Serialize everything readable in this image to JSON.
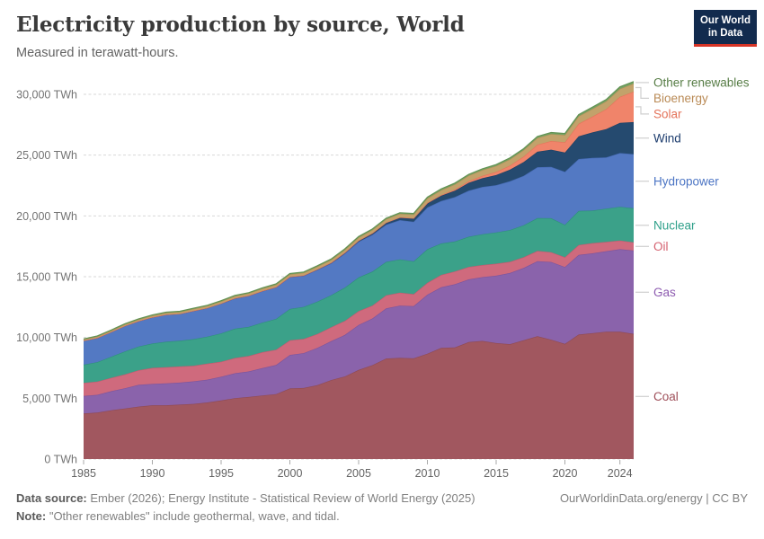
{
  "header": {
    "title": "Electricity production by source, World",
    "subtitle": "Measured in terawatt-hours.",
    "logo_line1": "Our World",
    "logo_line2": "in Data",
    "logo_bg": "#122b4e",
    "logo_accent": "#d63426"
  },
  "footer": {
    "source_label": "Data source:",
    "source_text": " Ember (2026); Energy Institute - Statistical Review of World Energy (2025)",
    "note_label": "Note:",
    "note_text": " \"Other renewables\" include geothermal, wave, and tidal.",
    "link": "OurWorldinData.org/energy | CC BY"
  },
  "chart_data": {
    "type": "area",
    "stacked": true,
    "title": "Electricity production by source, World",
    "subtitle": "Measured in terawatt-hours.",
    "unit": "TWh",
    "xlabel": "",
    "ylabel": "TWh",
    "ylim": [
      0,
      31500
    ],
    "grid": "dashed-horizontal",
    "legend_position": "right-of-plot, labels aligned to band midpoints",
    "x": [
      1985,
      1986,
      1987,
      1988,
      1989,
      1990,
      1991,
      1992,
      1993,
      1994,
      1995,
      1996,
      1997,
      1998,
      1999,
      2000,
      2001,
      2002,
      2003,
      2004,
      2005,
      2006,
      2007,
      2008,
      2009,
      2010,
      2011,
      2012,
      2013,
      2014,
      2015,
      2016,
      2017,
      2018,
      2019,
      2020,
      2021,
      2022,
      2023,
      2024,
      2025
    ],
    "xticks": [
      1985,
      1990,
      1995,
      2000,
      2005,
      2010,
      2015,
      2020,
      2024
    ],
    "yticks": [
      0,
      5000,
      10000,
      15000,
      20000,
      25000,
      30000
    ],
    "ytick_suffix": " TWh",
    "series": [
      {
        "name": "Coal",
        "color": "#a1575f",
        "stroke": "#8f4a52",
        "label_color": "#9e4e58",
        "values": [
          3748,
          3822,
          4014,
          4158,
          4312,
          4426,
          4425,
          4475,
          4539,
          4656,
          4821,
          5012,
          5105,
          5232,
          5342,
          5809,
          5845,
          6075,
          6495,
          6790,
          7333,
          7720,
          8268,
          8318,
          8280,
          8666,
          9143,
          9180,
          9622,
          9720,
          9538,
          9450,
          9770,
          10100,
          9820,
          9470,
          10240,
          10350,
          10480,
          10470,
          10300
        ]
      },
      {
        "name": "Gas",
        "color": "#8a63ab",
        "stroke": "#7b549d",
        "label_color": "#8d5bb0",
        "values": [
          1440,
          1463,
          1568,
          1661,
          1794,
          1752,
          1798,
          1810,
          1849,
          1879,
          1947,
          2045,
          2100,
          2247,
          2395,
          2752,
          2866,
          3071,
          3199,
          3419,
          3697,
          3845,
          4127,
          4300,
          4293,
          4853,
          4984,
          5200,
          5155,
          5245,
          5543,
          5850,
          5950,
          6180,
          6390,
          6330,
          6550,
          6570,
          6620,
          6790,
          6850
        ]
      },
      {
        "name": "Oil",
        "color": "#cf6a7d",
        "stroke": "#bf5a6e",
        "label_color": "#d4606f",
        "values": [
          1080,
          1095,
          1096,
          1142,
          1205,
          1325,
          1329,
          1332,
          1288,
          1310,
          1245,
          1258,
          1274,
          1316,
          1266,
          1206,
          1170,
          1146,
          1152,
          1160,
          1141,
          1066,
          1076,
          1070,
          996,
          975,
          1022,
          1058,
          1030,
          994,
          990,
          930,
          880,
          840,
          810,
          800,
          820,
          840,
          760,
          720,
          680
        ]
      },
      {
        "name": "Nuclear",
        "color": "#3ba189",
        "stroke": "#2e9179",
        "label_color": "#2fa08a",
        "values": [
          1489,
          1595,
          1735,
          1893,
          1945,
          2000,
          2096,
          2111,
          2185,
          2225,
          2321,
          2406,
          2390,
          2432,
          2527,
          2581,
          2637,
          2661,
          2635,
          2740,
          2768,
          2791,
          2748,
          2739,
          2697,
          2765,
          2584,
          2461,
          2478,
          2535,
          2571,
          2605,
          2636,
          2701,
          2790,
          2670,
          2800,
          2680,
          2740,
          2770,
          2800
        ]
      },
      {
        "name": "Hydropower",
        "color": "#5379c3",
        "stroke": "#466bb6",
        "label_color": "#4c75c4",
        "values": [
          1979,
          2003,
          2040,
          2104,
          2099,
          2159,
          2237,
          2222,
          2330,
          2357,
          2462,
          2500,
          2567,
          2590,
          2602,
          2619,
          2554,
          2608,
          2612,
          2787,
          2933,
          3024,
          3058,
          3227,
          3252,
          3437,
          3486,
          3645,
          3790,
          3890,
          3884,
          4010,
          4060,
          4190,
          4220,
          4350,
          4270,
          4330,
          4210,
          4420,
          4450
        ]
      },
      {
        "name": "Wind",
        "color": "#254a6f",
        "stroke": "#1d4063",
        "label_color": "#1d3d6e",
        "values": [
          0,
          0,
          0,
          1,
          2,
          4,
          4,
          5,
          6,
          7,
          8,
          9,
          12,
          16,
          21,
          31,
          38,
          52,
          63,
          85,
          104,
          133,
          171,
          221,
          276,
          346,
          437,
          526,
          648,
          717,
          831,
          959,
          1136,
          1270,
          1420,
          1590,
          1860,
          2100,
          2330,
          2490,
          2640
        ]
      },
      {
        "name": "Solar",
        "color": "#f0846a",
        "stroke": "#e5735a",
        "label_color": "#e4735a",
        "values": [
          0,
          0,
          0,
          0,
          0,
          0,
          0,
          0,
          1,
          1,
          1,
          1,
          1,
          1,
          1,
          1,
          1,
          2,
          2,
          3,
          4,
          5,
          7,
          12,
          20,
          32,
          63,
          97,
          132,
          190,
          256,
          328,
          444,
          574,
          705,
          846,
          1040,
          1300,
          1640,
          2130,
          2500
        ]
      },
      {
        "name": "Bioenergy",
        "color": "#c2a26b",
        "stroke": "#b3915a",
        "label_color": "#b98a55",
        "values": [
          96,
          102,
          108,
          115,
          122,
          128,
          134,
          141,
          148,
          154,
          161,
          168,
          175,
          182,
          189,
          196,
          203,
          212,
          222,
          233,
          245,
          258,
          272,
          287,
          303,
          370,
          400,
          430,
          460,
          480,
          500,
          520,
          540,
          560,
          580,
          600,
          620,
          630,
          640,
          660,
          665
        ]
      },
      {
        "name": "Other renewables",
        "color": "#74a465",
        "stroke": "#639254",
        "label_color": "#577d46",
        "values": [
          47,
          49,
          50,
          52,
          54,
          55,
          56,
          57,
          58,
          59,
          60,
          61,
          63,
          64,
          66,
          68,
          70,
          72,
          74,
          76,
          78,
          80,
          82,
          84,
          86,
          95,
          98,
          101,
          104,
          107,
          110,
          113,
          116,
          119,
          122,
          126,
          130,
          140,
          150,
          160,
          162
        ]
      }
    ],
    "axis_colors": {
      "ytick_label": "#737373",
      "xtick_label": "#636363",
      "gridline": "#d7d7d7",
      "tick_mark": "#a8a8a8",
      "connector": "#cfcfcf"
    }
  }
}
